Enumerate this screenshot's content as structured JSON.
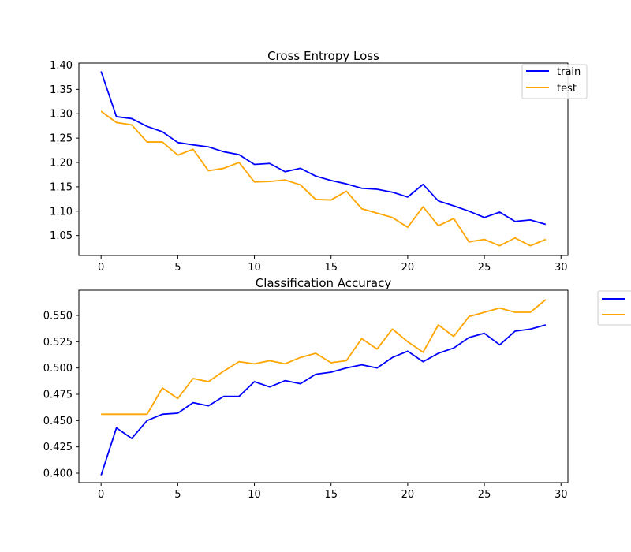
{
  "chart_data": [
    {
      "type": "line",
      "title": "Cross Entropy Loss",
      "xlabel": "",
      "ylabel": "",
      "xlim": [
        -1.45,
        30.45
      ],
      "ylim": [
        1.009,
        1.404
      ],
      "xticks": [
        0,
        5,
        10,
        15,
        20,
        25,
        30
      ],
      "yticks": [
        1.05,
        1.1,
        1.15,
        1.2,
        1.25,
        1.3,
        1.35,
        1.4
      ],
      "legend": "top-right",
      "x": [
        0,
        1,
        2,
        3,
        4,
        5,
        6,
        7,
        8,
        9,
        10,
        11,
        12,
        13,
        14,
        15,
        16,
        17,
        18,
        19,
        20,
        21,
        22,
        23,
        24,
        25,
        26,
        27,
        28,
        29
      ],
      "series": [
        {
          "name": "train",
          "color": "#0000ff",
          "values": [
            1.387,
            1.294,
            1.29,
            1.274,
            1.263,
            1.241,
            1.236,
            1.232,
            1.222,
            1.216,
            1.196,
            1.198,
            1.181,
            1.188,
            1.172,
            1.163,
            1.156,
            1.147,
            1.145,
            1.139,
            1.129,
            1.155,
            1.121,
            1.111,
            1.1,
            1.087,
            1.098,
            1.079,
            1.082,
            1.073
          ]
        },
        {
          "name": "test",
          "color": "#ffa500",
          "values": [
            1.305,
            1.282,
            1.277,
            1.242,
            1.242,
            1.215,
            1.227,
            1.183,
            1.188,
            1.2,
            1.16,
            1.161,
            1.164,
            1.154,
            1.124,
            1.123,
            1.141,
            1.105,
            1.096,
            1.087,
            1.067,
            1.109,
            1.07,
            1.085,
            1.037,
            1.042,
            1.029,
            1.045,
            1.029,
            1.042
          ]
        }
      ]
    },
    {
      "type": "line",
      "title": "Classification Accuracy",
      "xlabel": "",
      "ylabel": "",
      "xlim": [
        -1.45,
        30.45
      ],
      "ylim": [
        0.391,
        0.574
      ],
      "xticks": [
        0,
        5,
        10,
        15,
        20,
        25,
        30
      ],
      "yticks": [
        0.4,
        0.425,
        0.45,
        0.475,
        0.5,
        0.525,
        0.55
      ],
      "legend": "outside right (truncated)",
      "x": [
        0,
        1,
        2,
        3,
        4,
        5,
        6,
        7,
        8,
        9,
        10,
        11,
        12,
        13,
        14,
        15,
        16,
        17,
        18,
        19,
        20,
        21,
        22,
        23,
        24,
        25,
        26,
        27,
        28,
        29
      ],
      "series": [
        {
          "color": "#0000ff",
          "values": [
            0.398,
            0.443,
            0.433,
            0.45,
            0.456,
            0.457,
            0.467,
            0.464,
            0.473,
            0.473,
            0.487,
            0.482,
            0.488,
            0.485,
            0.494,
            0.496,
            0.5,
            0.503,
            0.5,
            0.51,
            0.516,
            0.506,
            0.514,
            0.519,
            0.529,
            0.533,
            0.522,
            0.535,
            0.537,
            0.541
          ]
        },
        {
          "color": "#ffa500",
          "values": [
            0.456,
            0.456,
            0.456,
            0.456,
            0.481,
            0.471,
            0.49,
            0.487,
            0.497,
            0.506,
            0.504,
            0.507,
            0.504,
            0.51,
            0.514,
            0.505,
            0.507,
            0.528,
            0.518,
            0.537,
            0.525,
            0.515,
            0.541,
            0.53,
            0.549,
            0.553,
            0.557,
            0.553,
            0.553,
            0.565
          ]
        }
      ]
    }
  ]
}
